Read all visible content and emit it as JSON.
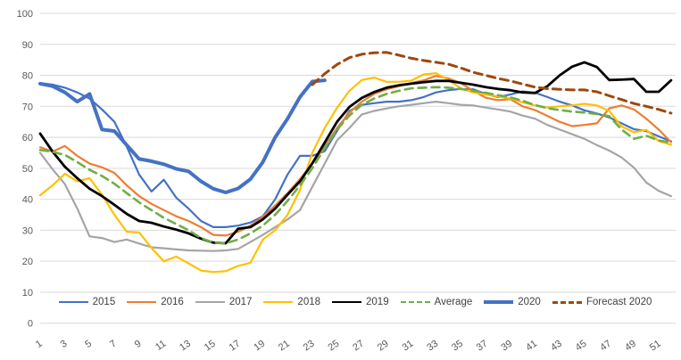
{
  "chart_data": {
    "type": "line",
    "title": "",
    "xlabel": "",
    "ylabel": "",
    "grid": true,
    "gridline_color": "#D9D9D9",
    "axis_label_color": "#595959",
    "legend_position": "bottom-inside",
    "ylim": [
      0,
      100
    ],
    "y_ticks": [
      0,
      10,
      20,
      30,
      40,
      50,
      60,
      70,
      80,
      90,
      100
    ],
    "x_ticks": [
      1,
      3,
      5,
      7,
      9,
      11,
      13,
      15,
      17,
      19,
      21,
      23,
      25,
      27,
      29,
      31,
      33,
      35,
      37,
      39,
      41,
      43,
      45,
      47,
      49,
      51
    ],
    "x_range": [
      1,
      52
    ],
    "series": [
      {
        "name": "2015",
        "color": "#4472C4",
        "width": 2.2,
        "dash": null,
        "values": [
          77.5,
          77,
          76,
          74.5,
          72.5,
          69,
          65,
          57,
          48,
          42.5,
          46.3,
          40.5,
          37,
          33,
          31,
          31,
          31.5,
          32.5,
          34.5,
          40,
          48,
          54,
          54,
          55.5,
          62,
          68.5,
          70.5,
          71,
          71.5,
          71.5,
          72,
          73,
          74.5,
          75.2,
          75.6,
          75.5,
          74,
          73,
          73.8,
          74.8,
          74.4,
          73,
          71.5,
          70.3,
          68.7,
          67.7,
          66.4,
          64.5,
          62.6,
          62,
          60.3,
          58.7
        ]
      },
      {
        "name": "2016",
        "color": "#ED7D31",
        "width": 2.2,
        "dash": null,
        "values": [
          56.8,
          55.4,
          57.2,
          54,
          51.5,
          50.3,
          48.5,
          44.5,
          41,
          38.5,
          36.5,
          34.5,
          33,
          31,
          28.5,
          28.3,
          29.5,
          31.5,
          34.3,
          38,
          42,
          46.5,
          51.5,
          57,
          63,
          68,
          71.5,
          74,
          75.5,
          76.5,
          77.5,
          78.4,
          79.8,
          79,
          77.5,
          75,
          72.8,
          72,
          72.3,
          70,
          68.8,
          66.9,
          65,
          63.6,
          64,
          64.5,
          69.3,
          70.3,
          69,
          66,
          62.5,
          58.4
        ]
      },
      {
        "name": "2017",
        "color": "#A5A5A5",
        "width": 2.2,
        "dash": null,
        "values": [
          55,
          49.7,
          44.9,
          37,
          28,
          27.5,
          26.2,
          27,
          25.7,
          24.5,
          24.2,
          23.8,
          23.5,
          23.4,
          23.3,
          23.5,
          24,
          26.2,
          28.5,
          31,
          33.5,
          36.5,
          44,
          51.5,
          59,
          63,
          67.4,
          68.5,
          69.3,
          70,
          70.5,
          71,
          71.5,
          71,
          70.5,
          70.3,
          69.6,
          69,
          68.3,
          67,
          66,
          64,
          62.5,
          61,
          59.5,
          57.5,
          55.7,
          53.5,
          50.2,
          45.4,
          42.7,
          41
        ]
      },
      {
        "name": "2018",
        "color": "#FFC000",
        "width": 2.2,
        "dash": null,
        "values": [
          41.3,
          44.5,
          48.2,
          45.8,
          46.8,
          41.5,
          35,
          29.5,
          29.3,
          24.3,
          20,
          21.5,
          19.3,
          17,
          16.5,
          16.8,
          18.5,
          19.5,
          27,
          30,
          35,
          43,
          55,
          63,
          69.5,
          75,
          78.5,
          79.3,
          77.9,
          77.9,
          78.3,
          80.3,
          80.7,
          78.5,
          75.8,
          74.5,
          73.8,
          73.2,
          72.5,
          71.3,
          70.3,
          69.6,
          70,
          70.3,
          70.8,
          70.3,
          68.5,
          63.5,
          61.6,
          62.4,
          58.8,
          57.6
        ]
      },
      {
        "name": "2019",
        "color": "#000000",
        "width": 2.8,
        "dash": null,
        "values": [
          61.2,
          55.4,
          50.5,
          46.8,
          43.4,
          41,
          38.2,
          35.3,
          33,
          32.4,
          31.2,
          30.2,
          29,
          27.3,
          26,
          25.8,
          30.5,
          31,
          33.5,
          37,
          41.5,
          45.8,
          51.6,
          58.3,
          65,
          69.8,
          72.7,
          74.6,
          76,
          76.8,
          77.3,
          77.8,
          78.2,
          78.2,
          77.6,
          77,
          76.2,
          75.6,
          75.2,
          74.5,
          74.3,
          76.5,
          80,
          82.8,
          84.2,
          82.7,
          78.5,
          78.6,
          78.8,
          74.7,
          74.7,
          78.4
        ]
      },
      {
        "name": "Average",
        "color": "#70AD47",
        "width": 2.6,
        "dash": "9 6",
        "values": [
          55.9,
          55.3,
          54.3,
          52,
          49.5,
          47.5,
          45,
          42,
          39,
          36.5,
          34,
          32,
          30,
          27.5,
          26,
          25.8,
          27,
          29,
          31.5,
          35,
          39.5,
          44.5,
          50,
          56.5,
          62.5,
          67,
          70.5,
          72.5,
          74,
          75,
          75.8,
          76,
          76.2,
          76,
          75.6,
          75,
          74.4,
          73.6,
          72.9,
          71.8,
          70.4,
          69.4,
          68.8,
          68.3,
          68,
          67.5,
          66.8,
          62.5,
          59.5,
          60.5,
          59,
          58.3
        ]
      },
      {
        "name": "2020",
        "color": "#4472C4",
        "width": 4,
        "dash": null,
        "values": [
          77.3,
          76.5,
          74.5,
          71.5,
          74,
          62.5,
          62,
          57.5,
          53,
          52.3,
          51.3,
          49.8,
          49,
          45.8,
          43.4,
          42.2,
          43.5,
          46.5,
          52,
          60,
          66,
          73,
          78,
          78.4,
          null,
          null,
          null,
          null,
          null,
          null,
          null,
          null,
          null,
          null,
          null,
          null,
          null,
          null,
          null,
          null,
          null,
          null,
          null,
          null,
          null,
          null,
          null,
          null,
          null,
          null,
          null,
          null
        ]
      },
      {
        "name": "Forecast 2020",
        "color": "#9E480E",
        "width": 3,
        "dash": "9 6",
        "values": [
          null,
          null,
          null,
          null,
          null,
          null,
          null,
          null,
          null,
          null,
          null,
          null,
          null,
          null,
          null,
          null,
          null,
          null,
          null,
          null,
          null,
          null,
          77,
          80.5,
          83.5,
          85.7,
          86.8,
          87.3,
          87.4,
          86.5,
          85.5,
          84.8,
          84.2,
          83.6,
          82.4,
          81,
          80,
          79,
          78.2,
          77.2,
          76.2,
          75.7,
          75.5,
          75.3,
          75.3,
          74.7,
          73.4,
          72.2,
          70.9,
          70,
          69,
          67.8
        ]
      }
    ]
  }
}
